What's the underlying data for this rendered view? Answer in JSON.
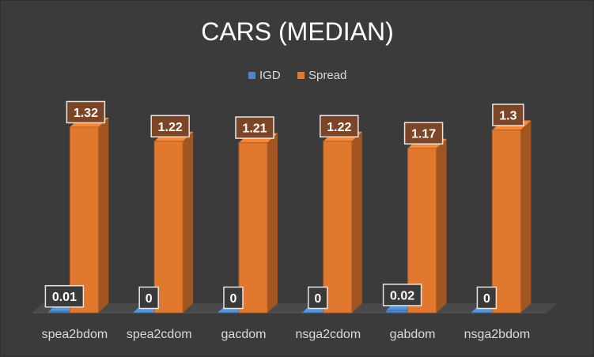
{
  "chart_data": {
    "type": "bar",
    "title": "CARS (MEDIAN)",
    "categories": [
      "spea2bdom",
      "spea2cdom",
      "gacdom",
      "nsga2cdom",
      "gabdom",
      "nsga2bdom"
    ],
    "series": [
      {
        "name": "IGD",
        "values": [
          0.01,
          0,
          0,
          0,
          0.02,
          0
        ],
        "labels": [
          "0.01",
          "0",
          "0",
          "0",
          "0.02",
          "0"
        ],
        "color": "#4a86c8"
      },
      {
        "name": "Spread",
        "values": [
          1.32,
          1.22,
          1.21,
          1.22,
          1.17,
          1.3
        ],
        "labels": [
          "1.32",
          "1.22",
          "1.21",
          "1.22",
          "1.17",
          "1.3"
        ],
        "color": "#e0782e"
      }
    ],
    "ylim": [
      0,
      1.4
    ],
    "grid": false,
    "legend": "top-center",
    "style": "3d-column",
    "colors": {
      "background": "#3b3b3b",
      "text": "#ffffff",
      "axis_text": "#d9d9d9",
      "floor": "#4a4a4a",
      "label_box_fill": "#7a4a2a",
      "label_box_stroke": "#e6e6e6"
    }
  }
}
